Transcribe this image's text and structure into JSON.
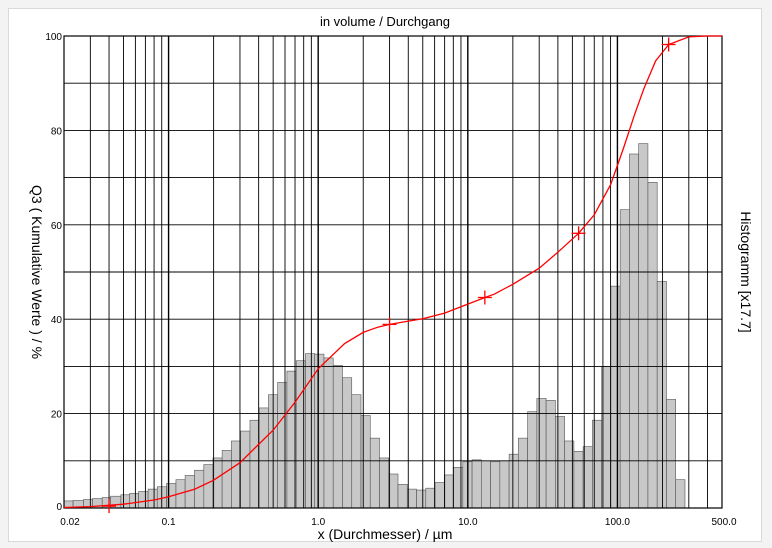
{
  "chart_data": {
    "type": "bar",
    "title": "in volume / Durchgang",
    "xlabel": "x (Durchmesser) / µm",
    "ylabel": "Q3 ( Kumulative Werte ) / %",
    "y2label": "Histogramm [x17.7]",
    "x_scale": "log",
    "xlim": [
      0.02,
      500.0
    ],
    "ylim": [
      0,
      100
    ],
    "grid": true,
    "x_tick_labels": [
      {
        "value": 0.02,
        "label": "0.02"
      },
      {
        "value": 0.1,
        "label": "0.1"
      },
      {
        "value": 1.0,
        "label": "1.0"
      },
      {
        "value": 10.0,
        "label": "10.0"
      },
      {
        "value": 100.0,
        "label": "100.0"
      },
      {
        "value": 500.0,
        "label": "500.0"
      }
    ],
    "y_tick_labels": [
      {
        "value": 0,
        "label": "0"
      },
      {
        "value": 20,
        "label": "20"
      },
      {
        "value": 40,
        "label": "40"
      },
      {
        "value": 60,
        "label": "60"
      },
      {
        "value": 80,
        "label": "80"
      },
      {
        "value": 100,
        "label": "100"
      }
    ],
    "histogram": {
      "color": "#c8c8c8",
      "bars": [
        {
          "x0": 0.02,
          "x1": 0.023,
          "y": 1.5
        },
        {
          "x0": 0.023,
          "x1": 0.027,
          "y": 1.6
        },
        {
          "x0": 0.027,
          "x1": 0.031,
          "y": 1.8
        },
        {
          "x0": 0.031,
          "x1": 0.036,
          "y": 2.0
        },
        {
          "x0": 0.036,
          "x1": 0.041,
          "y": 2.2
        },
        {
          "x0": 0.041,
          "x1": 0.048,
          "y": 2.5
        },
        {
          "x0": 0.048,
          "x1": 0.055,
          "y": 2.8
        },
        {
          "x0": 0.055,
          "x1": 0.063,
          "y": 3.1
        },
        {
          "x0": 0.063,
          "x1": 0.073,
          "y": 3.5
        },
        {
          "x0": 0.073,
          "x1": 0.084,
          "y": 4.0
        },
        {
          "x0": 0.084,
          "x1": 0.097,
          "y": 4.5
        },
        {
          "x0": 0.097,
          "x1": 0.112,
          "y": 5.2
        },
        {
          "x0": 0.112,
          "x1": 0.129,
          "y": 6.0
        },
        {
          "x0": 0.129,
          "x1": 0.149,
          "y": 6.9
        },
        {
          "x0": 0.149,
          "x1": 0.172,
          "y": 8.0
        },
        {
          "x0": 0.172,
          "x1": 0.198,
          "y": 9.2
        },
        {
          "x0": 0.198,
          "x1": 0.228,
          "y": 10.6
        },
        {
          "x0": 0.228,
          "x1": 0.263,
          "y": 12.2
        },
        {
          "x0": 0.263,
          "x1": 0.303,
          "y": 14.2
        },
        {
          "x0": 0.303,
          "x1": 0.35,
          "y": 16.3
        },
        {
          "x0": 0.35,
          "x1": 0.403,
          "y": 18.6
        },
        {
          "x0": 0.403,
          "x1": 0.465,
          "y": 21.2
        },
        {
          "x0": 0.465,
          "x1": 0.536,
          "y": 24.0
        },
        {
          "x0": 0.536,
          "x1": 0.618,
          "y": 26.6
        },
        {
          "x0": 0.618,
          "x1": 0.713,
          "y": 29.0
        },
        {
          "x0": 0.713,
          "x1": 0.822,
          "y": 31.2
        },
        {
          "x0": 0.822,
          "x1": 0.948,
          "y": 32.7
        },
        {
          "x0": 0.948,
          "x1": 1.093,
          "y": 32.6
        },
        {
          "x0": 1.093,
          "x1": 1.26,
          "y": 31.8
        },
        {
          "x0": 1.26,
          "x1": 1.453,
          "y": 30.2
        },
        {
          "x0": 1.453,
          "x1": 1.676,
          "y": 27.6
        },
        {
          "x0": 1.676,
          "x1": 1.932,
          "y": 24.0
        },
        {
          "x0": 1.932,
          "x1": 2.228,
          "y": 19.6
        },
        {
          "x0": 2.228,
          "x1": 2.569,
          "y": 14.8
        },
        {
          "x0": 2.569,
          "x1": 2.962,
          "y": 10.6
        },
        {
          "x0": 2.962,
          "x1": 3.416,
          "y": 7.2
        },
        {
          "x0": 3.416,
          "x1": 3.939,
          "y": 5.0
        },
        {
          "x0": 3.939,
          "x1": 4.542,
          "y": 4.0
        },
        {
          "x0": 4.542,
          "x1": 5.237,
          "y": 3.8
        },
        {
          "x0": 5.237,
          "x1": 6.039,
          "y": 4.2
        },
        {
          "x0": 6.039,
          "x1": 6.964,
          "y": 5.4
        },
        {
          "x0": 6.964,
          "x1": 8.03,
          "y": 7.0
        },
        {
          "x0": 8.03,
          "x1": 9.26,
          "y": 8.6
        },
        {
          "x0": 9.26,
          "x1": 10.68,
          "y": 9.8
        },
        {
          "x0": 10.68,
          "x1": 12.31,
          "y": 10.2
        },
        {
          "x0": 12.31,
          "x1": 14.2,
          "y": 10.0
        },
        {
          "x0": 14.2,
          "x1": 16.37,
          "y": 9.8
        },
        {
          "x0": 16.37,
          "x1": 18.88,
          "y": 10.0
        },
        {
          "x0": 18.88,
          "x1": 21.77,
          "y": 11.4
        },
        {
          "x0": 21.77,
          "x1": 25.1,
          "y": 14.8
        },
        {
          "x0": 25.1,
          "x1": 28.94,
          "y": 20.4
        },
        {
          "x0": 28.94,
          "x1": 33.37,
          "y": 23.2
        },
        {
          "x0": 33.37,
          "x1": 38.48,
          "y": 22.8
        },
        {
          "x0": 38.48,
          "x1": 44.38,
          "y": 19.4
        },
        {
          "x0": 44.38,
          "x1": 51.17,
          "y": 14.2
        },
        {
          "x0": 51.17,
          "x1": 59.0,
          "y": 12.0
        },
        {
          "x0": 59.0,
          "x1": 68.04,
          "y": 13.0
        },
        {
          "x0": 68.04,
          "x1": 78.45,
          "y": 18.6
        },
        {
          "x0": 78.45,
          "x1": 90.47,
          "y": 30.0
        },
        {
          "x0": 90.47,
          "x1": 104.3,
          "y": 47.0
        },
        {
          "x0": 104.3,
          "x1": 120.3,
          "y": 63.2
        },
        {
          "x0": 120.3,
          "x1": 138.7,
          "y": 75.0
        },
        {
          "x0": 138.7,
          "x1": 159.9,
          "y": 77.2
        },
        {
          "x0": 159.9,
          "x1": 184.4,
          "y": 69.0
        },
        {
          "x0": 184.4,
          "x1": 212.7,
          "y": 48.0
        },
        {
          "x0": 212.7,
          "x1": 245.2,
          "y": 23.0
        },
        {
          "x0": 245.2,
          "x1": 282.8,
          "y": 6.0
        }
      ]
    },
    "series": [
      {
        "type": "line",
        "color": "#ff0000",
        "x": [
          0.02,
          0.03,
          0.05,
          0.08,
          0.1,
          0.15,
          0.2,
          0.3,
          0.5,
          0.7,
          1.0,
          1.5,
          2.0,
          2.5,
          3.0,
          4.0,
          5.0,
          7.0,
          10.0,
          13.0,
          15.0,
          20.0,
          30.0,
          40.0,
          55.0,
          70.0,
          90.0,
          110.0,
          130.0,
          150.0,
          180.0,
          220.0,
          300.0,
          400.0,
          500.0
        ],
        "y": [
          0.1,
          0.3,
          0.8,
          1.7,
          2.4,
          4.0,
          5.9,
          9.6,
          16.5,
          22.4,
          29.5,
          34.8,
          37.2,
          38.3,
          38.9,
          39.6,
          40.1,
          41.3,
          43.2,
          44.6,
          45.3,
          47.4,
          50.8,
          54.2,
          58.2,
          62.1,
          68.5,
          76.3,
          83.3,
          88.8,
          94.7,
          98.2,
          99.8,
          100.0,
          100.0
        ]
      }
    ],
    "markers": [
      {
        "x": 0.04,
        "y": 0.4
      },
      {
        "x": 3.0,
        "y": 38.9
      },
      {
        "x": 13.0,
        "y": 44.6
      },
      {
        "x": 55.0,
        "y": 58.2
      },
      {
        "x": 220.0,
        "y": 98.2
      }
    ]
  }
}
